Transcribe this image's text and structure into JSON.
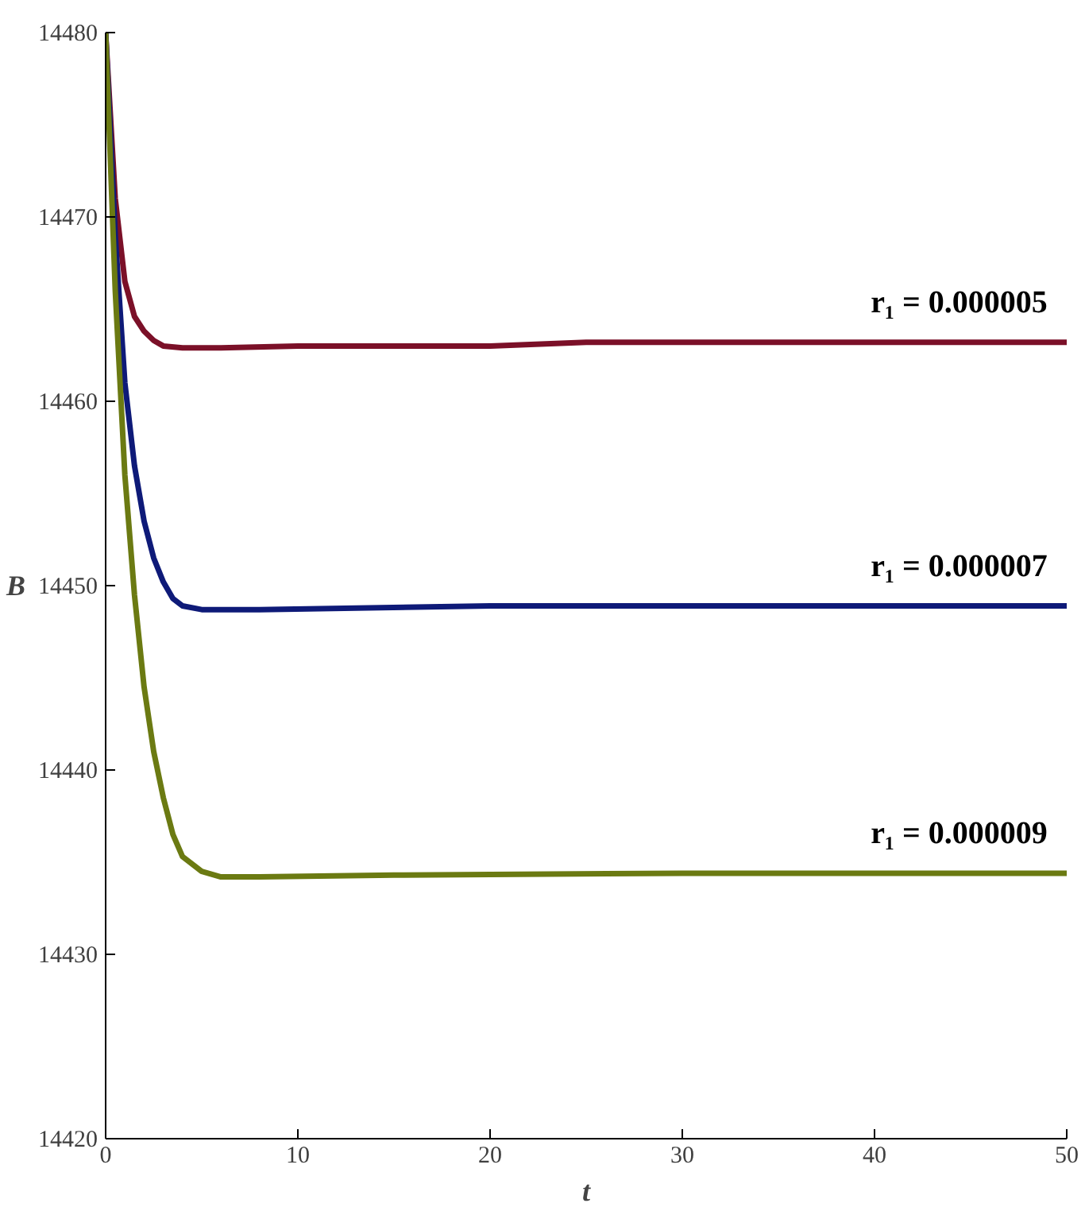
{
  "chart_data": {
    "type": "line",
    "xlabel": "t",
    "ylabel": "B",
    "xlim": [
      0,
      50
    ],
    "xticks": [
      0,
      10,
      20,
      30,
      40,
      50
    ],
    "ylim": [
      14420,
      14480
    ],
    "yticks": [
      14420,
      14430,
      14440,
      14450,
      14460,
      14470,
      14480
    ],
    "grid": false,
    "legend": false,
    "line_style": "solid",
    "marker": "none",
    "series": [
      {
        "name": "r₁ = 0.000005",
        "color": "#7b1028",
        "x": [
          0,
          0.5,
          1,
          1.5,
          2,
          2.5,
          3,
          4,
          6,
          10,
          20,
          25,
          35,
          50
        ],
        "values": [
          14480,
          14471,
          14466.5,
          14464.6,
          14463.8,
          14463.3,
          14463.0,
          14462.9,
          14462.9,
          14463.0,
          14463.0,
          14463.2,
          14463.2,
          14463.2
        ]
      },
      {
        "name": "r₁ = 0.000007",
        "color": "#0e1a78",
        "x": [
          0,
          0.5,
          1,
          1.5,
          2,
          2.5,
          3,
          3.5,
          4,
          5,
          8,
          20,
          35,
          50
        ],
        "values": [
          14480,
          14469,
          14461,
          14456.5,
          14453.5,
          14451.5,
          14450.2,
          14449.3,
          14448.9,
          14448.7,
          14448.7,
          14448.9,
          14448.9,
          14448.9
        ]
      },
      {
        "name": "r₁ = 0.000009",
        "color": "#6b7a12",
        "x": [
          0,
          0.5,
          1,
          1.5,
          2,
          2.5,
          3,
          3.5,
          4,
          5,
          6,
          8,
          15,
          30,
          50
        ],
        "values": [
          14480,
          14466,
          14456,
          14449.5,
          14444.5,
          14441,
          14438.5,
          14436.5,
          14435.3,
          14434.5,
          14434.2,
          14434.2,
          14434.3,
          14434.4,
          14434.4
        ]
      }
    ]
  }
}
